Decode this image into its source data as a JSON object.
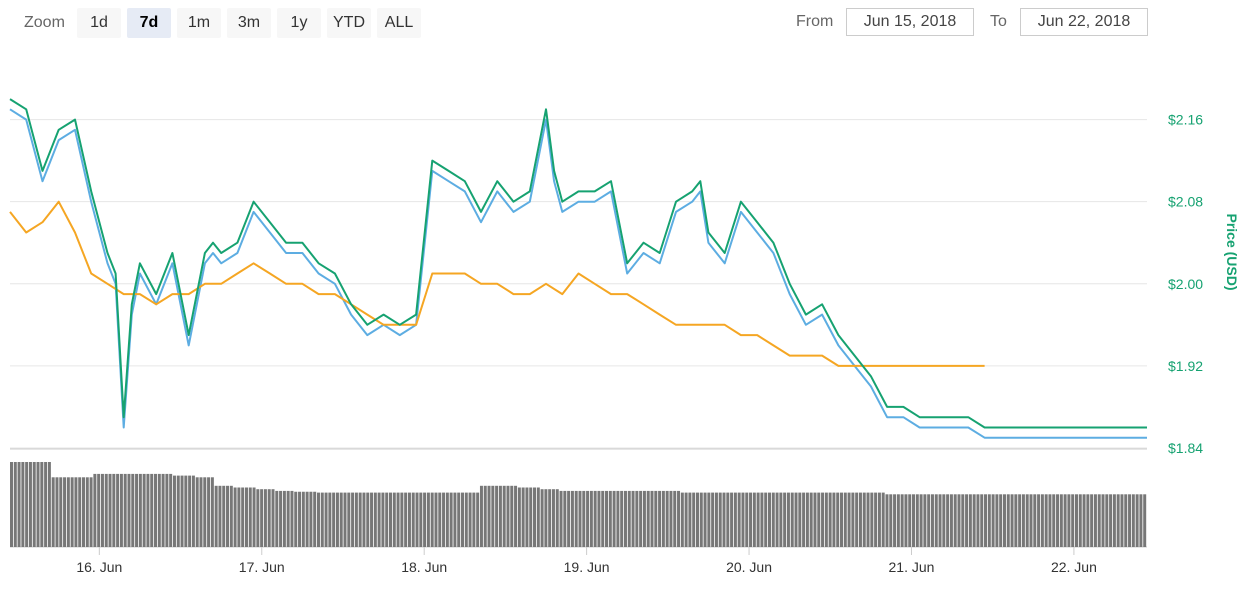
{
  "zoom": {
    "label": "Zoom",
    "buttons": [
      "1d",
      "7d",
      "1m",
      "3m",
      "1y",
      "YTD",
      "ALL"
    ],
    "active": "7d"
  },
  "range": {
    "from_label": "From",
    "from_value": "Jun 15, 2018",
    "to_label": "To",
    "to_value": "Jun 22, 2018"
  },
  "colors": {
    "price_usd": "#16a271",
    "price_usd_secondary": "#5dade2",
    "price_btc": "#f5a623",
    "volume": "#777777",
    "grid": "#e6e6e6"
  },
  "chart_data": {
    "type": "line",
    "title": "",
    "xlabel": "",
    "ylabel": "Price (USD)",
    "ylim": [
      1.84,
      2.22
    ],
    "y_ticks": [
      "$1.84",
      "$1.92",
      "$2.00",
      "$2.08",
      "$2.16"
    ],
    "y_tick_values": [
      1.84,
      1.92,
      2.0,
      2.08,
      2.16
    ],
    "x_ticks": [
      "16. Jun",
      "17. Jun",
      "18. Jun",
      "19. Jun",
      "20. Jun",
      "21. Jun",
      "22. Jun"
    ],
    "x_tick_values": [
      16,
      17,
      18,
      19,
      20,
      21,
      22
    ],
    "xlim": [
      15.45,
      22.45
    ],
    "grid": true,
    "series": [
      {
        "key": "green",
        "x": [
          15.45,
          15.55,
          15.65,
          15.75,
          15.85,
          15.95,
          16.05,
          16.1,
          16.15,
          16.2,
          16.25,
          16.35,
          16.45,
          16.55,
          16.65,
          16.7,
          16.75,
          16.85,
          16.95,
          17.05,
          17.15,
          17.25,
          17.35,
          17.45,
          17.55,
          17.65,
          17.75,
          17.85,
          17.95,
          18.05,
          18.15,
          18.25,
          18.35,
          18.45,
          18.55,
          18.65,
          18.75,
          18.8,
          18.85,
          18.95,
          19.05,
          19.15,
          19.25,
          19.35,
          19.45,
          19.55,
          19.65,
          19.7,
          19.75,
          19.85,
          19.95,
          20.05,
          20.1,
          20.15,
          20.25,
          20.35,
          20.45,
          20.55,
          20.65,
          20.75,
          20.85,
          20.95,
          21.05,
          21.15,
          21.25,
          21.35,
          21.45,
          21.55,
          21.65,
          21.75,
          21.85,
          21.95,
          22.05,
          22.15,
          22.25,
          22.35,
          22.4,
          22.45
        ],
        "y": [
          2.18,
          2.17,
          2.11,
          2.15,
          2.16,
          2.09,
          2.03,
          2.01,
          1.87,
          1.98,
          2.02,
          1.99,
          2.03,
          1.95,
          2.03,
          2.04,
          2.03,
          2.04,
          2.08,
          2.06,
          2.04,
          2.04,
          2.02,
          2.01,
          1.98,
          1.96,
          1.97,
          1.96,
          1.97,
          2.12,
          2.11,
          2.1,
          2.07,
          2.1,
          2.08,
          2.09,
          2.17,
          2.11,
          2.08,
          2.09,
          2.09,
          2.1,
          2.02,
          2.04,
          2.03,
          2.08,
          2.09,
          2.1,
          2.05,
          2.03,
          2.08,
          2.06,
          2.05,
          2.04,
          2.0,
          1.97,
          1.98,
          1.95,
          1.93,
          1.91,
          1.88,
          1.88,
          1.87,
          1.87,
          1.87,
          1.87,
          1.86,
          1.86,
          1.86,
          1.86,
          1.86,
          1.86,
          1.86,
          1.86,
          1.86,
          1.86,
          1.86,
          1.86
        ]
      },
      {
        "key": "blue",
        "x": [
          15.45,
          15.55,
          15.65,
          15.75,
          15.85,
          15.95,
          16.05,
          16.1,
          16.15,
          16.2,
          16.25,
          16.35,
          16.45,
          16.55,
          16.65,
          16.7,
          16.75,
          16.85,
          16.95,
          17.05,
          17.15,
          17.25,
          17.35,
          17.45,
          17.55,
          17.65,
          17.75,
          17.85,
          17.95,
          18.05,
          18.15,
          18.25,
          18.35,
          18.45,
          18.55,
          18.65,
          18.75,
          18.8,
          18.85,
          18.95,
          19.05,
          19.15,
          19.25,
          19.35,
          19.45,
          19.55,
          19.65,
          19.7,
          19.75,
          19.85,
          19.95,
          20.05,
          20.1,
          20.15,
          20.25,
          20.35,
          20.45,
          20.55,
          20.65,
          20.75,
          20.85,
          20.95,
          21.05,
          21.15,
          21.25,
          21.35,
          21.45,
          21.55,
          21.65,
          21.75,
          21.85,
          21.95,
          22.05,
          22.15,
          22.25,
          22.35,
          22.4,
          22.45
        ],
        "y": [
          2.17,
          2.16,
          2.1,
          2.14,
          2.15,
          2.08,
          2.02,
          2.0,
          1.86,
          1.97,
          2.01,
          1.98,
          2.02,
          1.94,
          2.02,
          2.03,
          2.02,
          2.03,
          2.07,
          2.05,
          2.03,
          2.03,
          2.01,
          2.0,
          1.97,
          1.95,
          1.96,
          1.95,
          1.96,
          2.11,
          2.1,
          2.09,
          2.06,
          2.09,
          2.07,
          2.08,
          2.16,
          2.1,
          2.07,
          2.08,
          2.08,
          2.09,
          2.01,
          2.03,
          2.02,
          2.07,
          2.08,
          2.09,
          2.04,
          2.02,
          2.07,
          2.05,
          2.04,
          2.03,
          1.99,
          1.96,
          1.97,
          1.94,
          1.92,
          1.9,
          1.87,
          1.87,
          1.86,
          1.86,
          1.86,
          1.86,
          1.85,
          1.85,
          1.85,
          1.85,
          1.85,
          1.85,
          1.85,
          1.85,
          1.85,
          1.85,
          1.85,
          1.85
        ]
      },
      {
        "key": "orange",
        "x": [
          15.45,
          15.55,
          15.65,
          15.75,
          15.85,
          15.95,
          16.05,
          16.15,
          16.25,
          16.35,
          16.45,
          16.55,
          16.65,
          16.75,
          16.85,
          16.95,
          17.05,
          17.15,
          17.25,
          17.35,
          17.45,
          17.55,
          17.65,
          17.75,
          17.85,
          17.95,
          18.05,
          18.15,
          18.25,
          18.35,
          18.45,
          18.55,
          18.65,
          18.75,
          18.85,
          18.95,
          19.05,
          19.15,
          19.25,
          19.35,
          19.45,
          19.55,
          19.65,
          19.75,
          19.85,
          19.95,
          20.05,
          20.15,
          20.25,
          20.35,
          20.45,
          20.55,
          20.65,
          20.75,
          20.85,
          20.95,
          21.05,
          21.15,
          21.25,
          21.35,
          21.45
        ],
        "y": [
          2.07,
          2.05,
          2.06,
          2.08,
          2.05,
          2.01,
          2.0,
          1.99,
          1.99,
          1.98,
          1.99,
          1.99,
          2.0,
          2.0,
          2.01,
          2.02,
          2.01,
          2.0,
          2.0,
          1.99,
          1.99,
          1.98,
          1.97,
          1.96,
          1.96,
          1.96,
          2.01,
          2.01,
          2.01,
          2.0,
          2.0,
          1.99,
          1.99,
          2.0,
          1.99,
          2.01,
          2.0,
          1.99,
          1.99,
          1.98,
          1.97,
          1.96,
          1.96,
          1.96,
          1.96,
          1.95,
          1.95,
          1.94,
          1.93,
          1.93,
          1.93,
          1.92,
          1.92,
          1.92,
          1.92,
          1.92,
          1.92,
          1.92,
          1.92,
          1.92,
          1.92
        ]
      }
    ],
    "volume": {
      "x_start": 15.45,
      "x_end": 22.45,
      "levels": [
        1.0,
        1.0,
        0.82,
        0.82,
        0.86,
        0.86,
        0.86,
        0.86,
        0.84,
        0.82,
        0.72,
        0.7,
        0.68,
        0.66,
        0.65,
        0.64,
        0.64,
        0.64,
        0.64,
        0.64,
        0.64,
        0.64,
        0.64,
        0.72,
        0.72,
        0.7,
        0.68,
        0.66,
        0.66,
        0.66,
        0.66,
        0.66,
        0.66,
        0.64,
        0.64,
        0.64,
        0.64,
        0.64,
        0.64,
        0.64,
        0.64,
        0.64,
        0.64,
        0.62,
        0.62,
        0.62,
        0.62,
        0.62,
        0.62,
        0.62,
        0.62,
        0.62,
        0.62,
        0.62,
        0.62,
        0.62
      ]
    }
  }
}
